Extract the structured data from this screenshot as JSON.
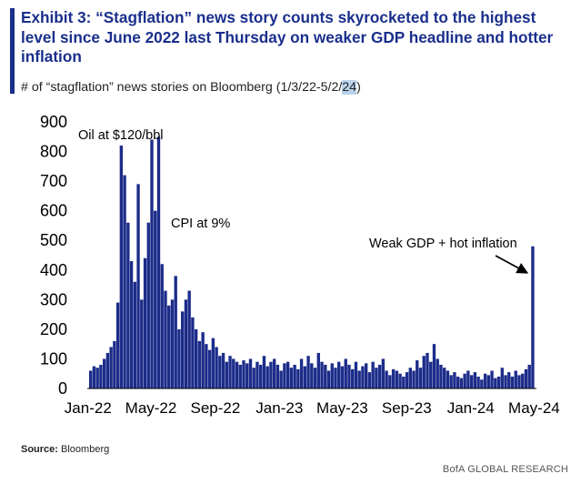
{
  "header": {
    "title": "Exhibit 3: “Stagflation” news story counts skyrocketed to the highest level since June 2022 last Thursday on weaker GDP headline and hotter inflation",
    "subtitle_main": "# of “stagflation” news stories on Bloomberg (1/3/22-5/2/",
    "subtitle_highlight": "24",
    "subtitle_end": ")"
  },
  "footer": {
    "source_label": "Source:",
    "source_value": "Bloomberg",
    "brand": "BofA GLOBAL RESEARCH"
  },
  "colors": {
    "title": "#1a2f8c",
    "bars": "#1c2c8a",
    "highlight": "#b9d3ec"
  },
  "chart_data": {
    "type": "bar",
    "title": "",
    "xlabel": "",
    "ylabel": "",
    "ylim": [
      0,
      900
    ],
    "yticks": [
      0,
      100,
      200,
      300,
      400,
      500,
      600,
      700,
      800,
      900
    ],
    "xticks": [
      "Jan-22",
      "May-22",
      "Sep-22",
      "Jan-23",
      "May-23",
      "Sep-23",
      "Jan-24",
      "May-24"
    ],
    "x_start": "2022-01-03",
    "x_end": "2024-05-02",
    "series": [
      {
        "frequency": "weekly",
        "values": [
          60,
          75,
          70,
          80,
          100,
          120,
          140,
          160,
          290,
          820,
          720,
          560,
          430,
          360,
          690,
          300,
          440,
          560,
          840,
          600,
          850,
          420,
          330,
          280,
          300,
          380,
          200,
          260,
          300,
          330,
          240,
          200,
          160,
          190,
          150,
          130,
          170,
          140,
          110,
          120,
          90,
          110,
          100,
          90,
          80,
          95,
          85,
          100,
          70,
          90,
          80,
          110,
          75,
          90,
          100,
          80,
          60,
          85,
          90,
          70,
          80,
          65,
          100,
          75,
          110,
          85,
          70,
          120,
          90,
          80,
          60,
          85,
          70,
          90,
          75,
          100,
          80,
          65,
          90,
          60,
          75,
          85,
          55,
          90,
          70,
          80,
          100,
          60,
          45,
          65,
          60,
          50,
          40,
          55,
          70,
          60,
          95,
          70,
          110,
          120,
          90,
          150,
          100,
          80,
          70,
          60,
          45,
          55,
          40,
          35,
          50,
          60,
          45,
          55,
          40,
          30,
          50,
          45,
          60,
          35,
          40,
          70,
          45,
          55,
          40,
          60,
          45,
          50,
          65,
          80,
          480
        ]
      }
    ],
    "annotations": [
      {
        "text": "Oil at $120/bbl"
      },
      {
        "text": "CPI at 9%"
      },
      {
        "text": "Weak GDP + hot inflation"
      }
    ]
  }
}
